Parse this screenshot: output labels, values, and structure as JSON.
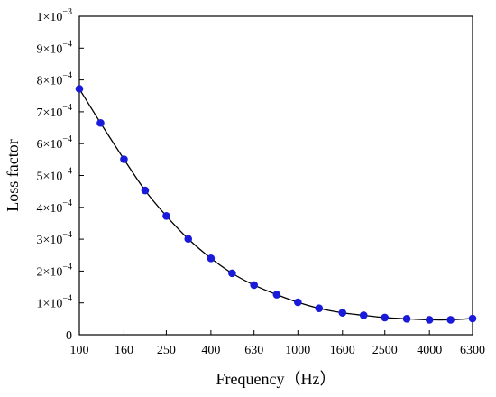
{
  "chart_data": {
    "type": "line",
    "title": "",
    "xlabel": "Frequency（Hz）",
    "ylabel": "Loss factor",
    "x_scale": "log",
    "x_ticks": [
      "100",
      "160",
      "250",
      "400",
      "630",
      "1000",
      "1600",
      "2500",
      "4000",
      "6300"
    ],
    "xlim": [
      100,
      6300
    ],
    "ylim": [
      0,
      0.001
    ],
    "y_ticks": [
      {
        "value": 0,
        "mantissa": "0",
        "exponent": ""
      },
      {
        "value": 0.0001,
        "mantissa": "1×10",
        "exponent": "−4"
      },
      {
        "value": 0.0002,
        "mantissa": "2×10",
        "exponent": "−4"
      },
      {
        "value": 0.0003,
        "mantissa": "3×10",
        "exponent": "−4"
      },
      {
        "value": 0.0004,
        "mantissa": "4×10",
        "exponent": "−4"
      },
      {
        "value": 0.0005,
        "mantissa": "5×10",
        "exponent": "−4"
      },
      {
        "value": 0.0006,
        "mantissa": "6×10",
        "exponent": "−4"
      },
      {
        "value": 0.0007,
        "mantissa": "7×10",
        "exponent": "−4"
      },
      {
        "value": 0.0008,
        "mantissa": "8×10",
        "exponent": "−4"
      },
      {
        "value": 0.0009,
        "mantissa": "9×10",
        "exponent": "−4"
      },
      {
        "value": 0.001,
        "mantissa": "1×10",
        "exponent": "−3"
      }
    ],
    "grid": false,
    "series": [
      {
        "marker_color": "#1a1adb",
        "line_color": "#000000",
        "x": [
          100,
          125,
          160,
          200,
          250,
          315,
          400,
          500,
          630,
          800,
          1000,
          1250,
          1600,
          2000,
          2500,
          3150,
          4000,
          5000,
          6300
        ],
        "y": [
          0.000772,
          0.000665,
          0.000551,
          0.000453,
          0.000373,
          0.000301,
          0.00024,
          0.000193,
          0.000156,
          0.000126,
          0.000102,
          8.3e-05,
          6.9e-05,
          6.1e-05,
          5.4e-05,
          5e-05,
          4.7e-05,
          4.7e-05,
          5.1e-05
        ]
      }
    ]
  }
}
